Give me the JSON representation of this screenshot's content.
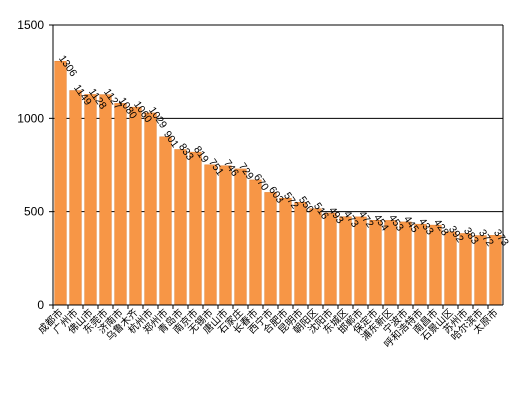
{
  "chart_data": {
    "type": "bar",
    "title": "",
    "xlabel": "",
    "ylabel": "",
    "ylim": [
      0,
      1500
    ],
    "yticks": [
      0,
      500,
      1000,
      1500
    ],
    "grid": true,
    "bar_color": "#F79646",
    "bar_stroke": "#E07B2A",
    "categories": [
      "成都市",
      "广州市",
      "佛山市",
      "东莞市",
      "济南市",
      "乌鲁木齐",
      "杭州市",
      "郑州市",
      "青岛市",
      "南京市",
      "无锡市",
      "唐山市",
      "石家庄",
      "长春市",
      "西宁市",
      "合肥市",
      "昆明市",
      "朝阳区",
      "沈阳市",
      "东城区",
      "邯郸市",
      "保定市",
      "浦东新区",
      "宁波市",
      "呼和浩特市",
      "南昌市",
      "石景山区",
      "苏州市",
      "哈尔滨市",
      "太原市"
    ],
    "values": [
      1306,
      1149,
      1128,
      1127,
      1080,
      1060,
      1029,
      901,
      833,
      819,
      751,
      746,
      729,
      670,
      603,
      572,
      550,
      516,
      493,
      473,
      472,
      454,
      453,
      445,
      433,
      428,
      392,
      383,
      372,
      373
    ],
    "labels": [
      "1306",
      "1149",
      "1128",
      "1127",
      "1080",
      "1060",
      "1029",
      "901",
      "833",
      "819",
      "751",
      "746",
      "729",
      "670",
      "603",
      "572",
      "550",
      "516",
      "493",
      "473",
      "472",
      "454",
      "453",
      "445",
      "433",
      "428",
      "392",
      "383",
      "372",
      "373"
    ]
  }
}
